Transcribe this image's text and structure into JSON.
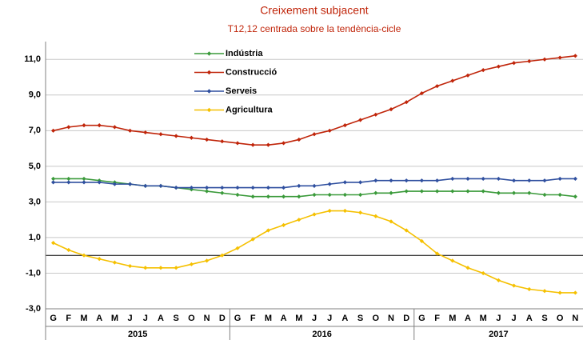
{
  "chart_data": {
    "type": "line",
    "subtitle": "Creixement subjacent",
    "note": "T12,12 centrada sobre la tendència-cicle",
    "categories": [
      "G",
      "F",
      "M",
      "A",
      "M",
      "J",
      "J",
      "A",
      "S",
      "O",
      "N",
      "D",
      "G",
      "F",
      "M",
      "A",
      "M",
      "J",
      "J",
      "A",
      "S",
      "O",
      "N",
      "D",
      "G",
      "F",
      "M",
      "A",
      "M",
      "J",
      "J",
      "A",
      "S",
      "O",
      "N"
    ],
    "years": [
      "2015",
      "2016",
      "2017"
    ],
    "series": [
      {
        "name": "Indústria",
        "color": "#3a9a3a",
        "values": [
          4.3,
          4.3,
          4.3,
          4.2,
          4.1,
          4.0,
          3.9,
          3.9,
          3.8,
          3.7,
          3.6,
          3.5,
          3.4,
          3.3,
          3.3,
          3.3,
          3.3,
          3.4,
          3.4,
          3.4,
          3.4,
          3.5,
          3.5,
          3.6,
          3.6,
          3.6,
          3.6,
          3.6,
          3.6,
          3.5,
          3.5,
          3.5,
          3.4,
          3.4,
          3.3
        ]
      },
      {
        "name": "Construcció",
        "color": "#c0250a",
        "values": [
          7.0,
          7.2,
          7.3,
          7.3,
          7.2,
          7.0,
          6.9,
          6.8,
          6.7,
          6.6,
          6.5,
          6.4,
          6.3,
          6.2,
          6.2,
          6.3,
          6.5,
          6.8,
          7.0,
          7.3,
          7.6,
          7.9,
          8.2,
          8.6,
          9.1,
          9.5,
          9.8,
          10.1,
          10.4,
          10.6,
          10.8,
          10.9,
          11.0,
          11.1,
          11.2
        ]
      },
      {
        "name": "Serveis",
        "color": "#2f4f9f",
        "values": [
          4.1,
          4.1,
          4.1,
          4.1,
          4.0,
          4.0,
          3.9,
          3.9,
          3.8,
          3.8,
          3.8,
          3.8,
          3.8,
          3.8,
          3.8,
          3.8,
          3.9,
          3.9,
          4.0,
          4.1,
          4.1,
          4.2,
          4.2,
          4.2,
          4.2,
          4.2,
          4.3,
          4.3,
          4.3,
          4.3,
          4.2,
          4.2,
          4.2,
          4.3,
          4.3
        ]
      },
      {
        "name": "Agricultura",
        "color": "#f5c000",
        "values": [
          0.7,
          0.3,
          0.0,
          -0.2,
          -0.4,
          -0.6,
          -0.7,
          -0.7,
          -0.7,
          -0.5,
          -0.3,
          0.0,
          0.4,
          0.9,
          1.4,
          1.7,
          2.0,
          2.3,
          2.5,
          2.5,
          2.4,
          2.2,
          1.9,
          1.4,
          0.8,
          0.1,
          -0.3,
          -0.7,
          -1.0,
          -1.4,
          -1.7,
          -1.9,
          -2.0,
          -2.1,
          -2.1
        ]
      }
    ],
    "ylim": [
      -3,
      12
    ],
    "yticks": [
      {
        "value": -3,
        "label": "-3,0"
      },
      {
        "value": -1,
        "label": "-1,0"
      },
      {
        "value": 1,
        "label": "1,0"
      },
      {
        "value": 3,
        "label": "3,0"
      },
      {
        "value": 5,
        "label": "5,0"
      },
      {
        "value": 7,
        "label": "7,0"
      },
      {
        "value": 9,
        "label": "9,0"
      },
      {
        "value": 11,
        "label": "11,0"
      }
    ],
    "grid": true,
    "legend": "top-left"
  }
}
